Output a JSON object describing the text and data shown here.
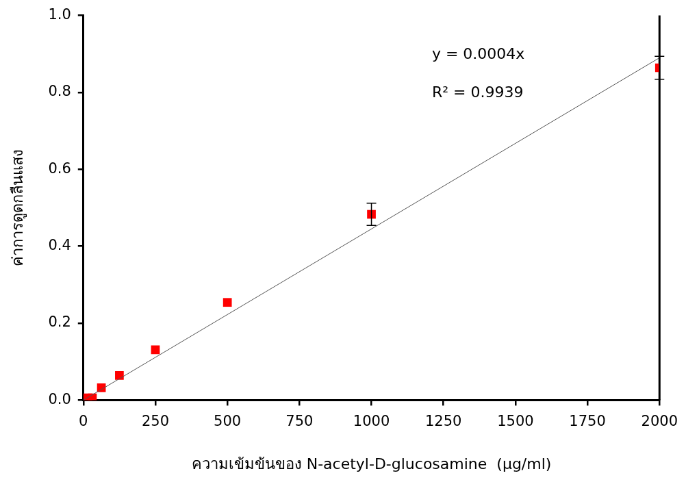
{
  "chart_data": {
    "type": "scatter",
    "xlabel": "ความเข้มข้นของ N-acetyl-D-glucosamine  (µg/ml)",
    "ylabel": "ค่าการดูดกลืนแสง",
    "annotations": [
      "y = 0.0004x",
      "R² = 0.9939"
    ],
    "series": [
      {
        "color": "#ff0000",
        "marker": "square",
        "x": [
          15.625,
          31.25,
          62.5,
          125,
          250,
          500,
          1000,
          2000
        ],
        "values": [
          0.006,
          0.006,
          0.032,
          0.064,
          0.131,
          0.254,
          0.483,
          0.864
        ],
        "errors": [
          null,
          null,
          null,
          null,
          null,
          null,
          0.029,
          0.03
        ]
      },
      {
        "type": "line",
        "color": "#555555",
        "marker": "none",
        "x": [
          0,
          2000
        ],
        "values": [
          0,
          0.89
        ]
      }
    ],
    "xlim": [
      0,
      2000
    ],
    "xticks": [
      0,
      250,
      500,
      750,
      1000,
      1250,
      1500,
      1750,
      2000
    ],
    "ylim": [
      0,
      1
    ],
    "yticks": [
      {
        "value": 0,
        "label": "0.0"
      },
      {
        "value": 0.2,
        "label": "0.2"
      },
      {
        "value": 0.4,
        "label": "0.4"
      },
      {
        "value": 0.6,
        "label": "0.6"
      },
      {
        "value": 0.8,
        "label": "0.8"
      },
      {
        "value": 1,
        "label": "1.0"
      }
    ],
    "grid": false,
    "legend": false
  }
}
